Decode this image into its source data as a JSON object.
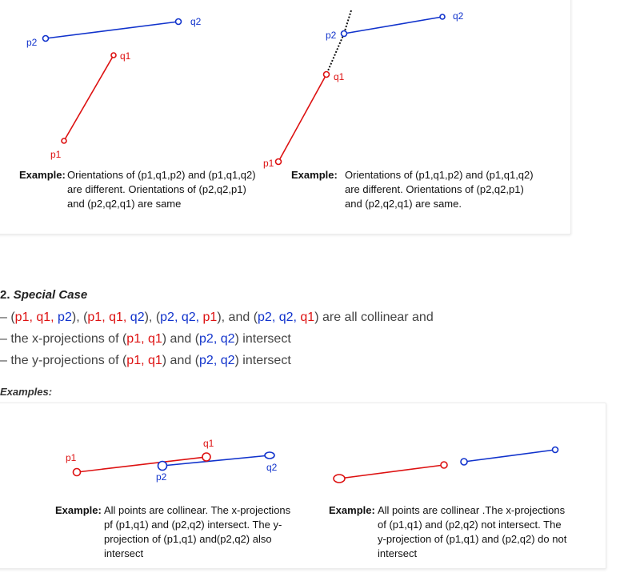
{
  "top_diagrams": {
    "left": {
      "labels": {
        "p1": "p1",
        "q1": "q1",
        "p2": "p2",
        "q2": "q2"
      },
      "caption_prefix": "Example:",
      "caption_lines": [
        "Orientations of (p1,q1,p2) and (p1,q1,q2)",
        "are different. Orientations of (p2,q2,p1)",
        "and (p2,q2,q1) are same"
      ]
    },
    "right": {
      "labels": {
        "p1": "p1",
        "q1": "q1",
        "p2": "p2",
        "q2": "q2"
      },
      "caption_prefix": "Example:",
      "caption_lines": [
        "Orientations of (p1,q1,p2) and (p1,q1,q2)",
        "are different. Orientations of (p2,q2,p1)",
        "and (p2,q2,q1) are same."
      ]
    }
  },
  "special_case": {
    "number": "2.",
    "title": "Special Case",
    "line1": {
      "dash": "– (",
      "t1": "p1, q1,",
      "t2": " p2",
      "t3": "), (",
      "t4": "p1, q1,",
      "t5": " q2",
      "t6": "), (",
      "t7": "p2, q2,",
      "t8": " p1",
      "t9": "), and (",
      "t10": "p2, q2,",
      "t11": " q1",
      "t12": ") are all collinear and"
    },
    "line2": {
      "a": "– the x-projections of (",
      "b": "p1, q1",
      "c": ") and (",
      "d": "p2, q2",
      "e": ") intersect"
    },
    "line3": {
      "a": "– the y-projections of (",
      "b": "p1, q1",
      "c": ") and (",
      "d": "p2, q2",
      "e": ") intersect"
    },
    "examples_label": "Examples:"
  },
  "bottom_diagrams": {
    "left": {
      "labels": {
        "p1": "p1",
        "q1": "q1",
        "p2": "p2",
        "q2": "q2"
      },
      "caption_prefix": "Example:",
      "caption_lines": [
        "All points are collinear. The x-projections",
        "pf (p1,q1) and (p2,q2) intersect. The y-",
        "projection of (p1,q1) and(p2,q2) also",
        "intersect"
      ]
    },
    "right": {
      "caption_prefix": "Example:",
      "caption_lines": [
        "All points are collinear .The x-projections",
        "of (p1,q1) and (p2,q2) not intersect. The",
        "y-projection of (p1,q1)  and (p2,q2) do not",
        "intersect"
      ]
    }
  },
  "colors": {
    "red": "#dd1111",
    "blue": "#1133cc"
  }
}
